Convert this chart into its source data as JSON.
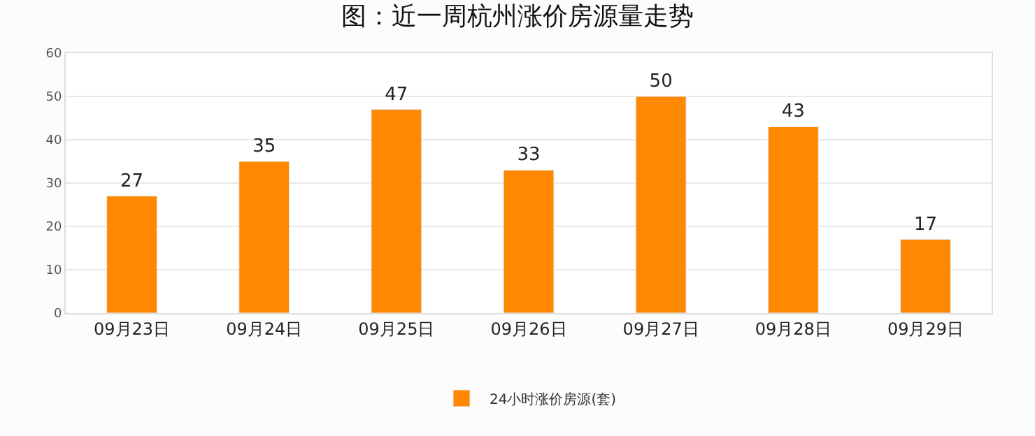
{
  "chart_data": {
    "type": "bar",
    "title": "图：近一周杭州涨价房源量走势",
    "categories": [
      "09月23日",
      "09月24日",
      "09月25日",
      "09月26日",
      "09月27日",
      "09月28日",
      "09月29日"
    ],
    "series": [
      {
        "name": "24小时涨价房源(套)",
        "color": "#ff8800",
        "values": [
          27,
          35,
          47,
          33,
          50,
          43,
          17
        ]
      }
    ],
    "ylim": [
      0,
      60
    ],
    "yticks": [
      0,
      10,
      20,
      30,
      40,
      50,
      60
    ],
    "grid": "y",
    "legend": "bottom",
    "data_labels": true
  }
}
